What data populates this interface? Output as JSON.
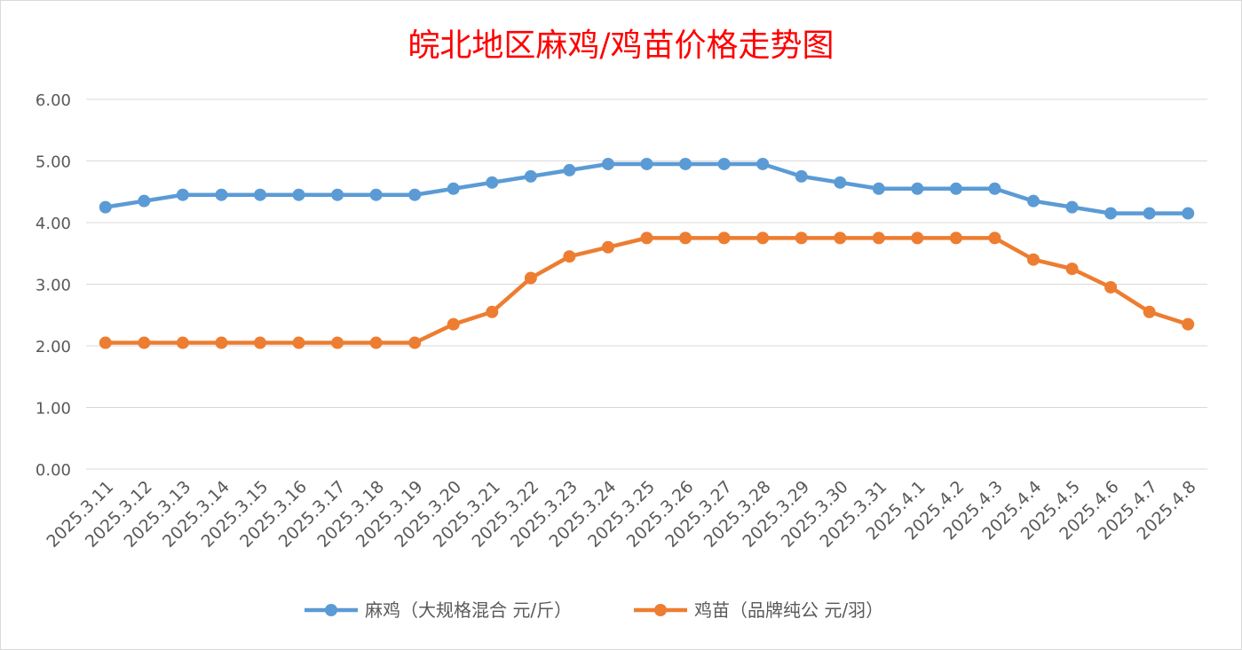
{
  "chart_data": {
    "type": "line",
    "title": "皖北地区麻鸡/鸡苗价格走势图",
    "categories": [
      "2025.3.11",
      "2025.3.12",
      "2025.3.13",
      "2025.3.14",
      "2025.3.15",
      "2025.3.16",
      "2025.3.17",
      "2025.3.18",
      "2025.3.19",
      "2025.3.20",
      "2025.3.21",
      "2025.3.22",
      "2025.3.23",
      "2025.3.24",
      "2025.3.25",
      "2025.3.26",
      "2025.3.27",
      "2025.3.28",
      "2025.3.29",
      "2025.3.30",
      "2025.3.31",
      "2025.4.1",
      "2025.4.2",
      "2025.4.3",
      "2025.4.4",
      "2025.4.5",
      "2025.4.6",
      "2025.4.7",
      "2025.4.8"
    ],
    "series": [
      {
        "name": "麻鸡（大规格混合 元/斤）",
        "color": "#5b9bd5",
        "values": [
          4.25,
          4.35,
          4.45,
          4.45,
          4.45,
          4.45,
          4.45,
          4.45,
          4.45,
          4.55,
          4.65,
          4.75,
          4.85,
          4.95,
          4.95,
          4.95,
          4.95,
          4.95,
          4.75,
          4.65,
          4.55,
          4.55,
          4.55,
          4.55,
          4.35,
          4.25,
          4.15,
          4.15,
          4.15
        ]
      },
      {
        "name": "鸡苗（品牌纯公 元/羽）",
        "color": "#ed7d31",
        "values": [
          2.05,
          2.05,
          2.05,
          2.05,
          2.05,
          2.05,
          2.05,
          2.05,
          2.05,
          2.35,
          2.55,
          3.1,
          3.45,
          3.6,
          3.75,
          3.75,
          3.75,
          3.75,
          3.75,
          3.75,
          3.75,
          3.75,
          3.75,
          3.75,
          3.4,
          3.25,
          2.95,
          2.55,
          2.35
        ]
      }
    ],
    "yticks": [
      "0.00",
      "1.00",
      "2.00",
      "3.00",
      "4.00",
      "5.00",
      "6.00"
    ],
    "ylim": [
      0,
      6
    ],
    "grid": true,
    "legend": "bottom"
  }
}
